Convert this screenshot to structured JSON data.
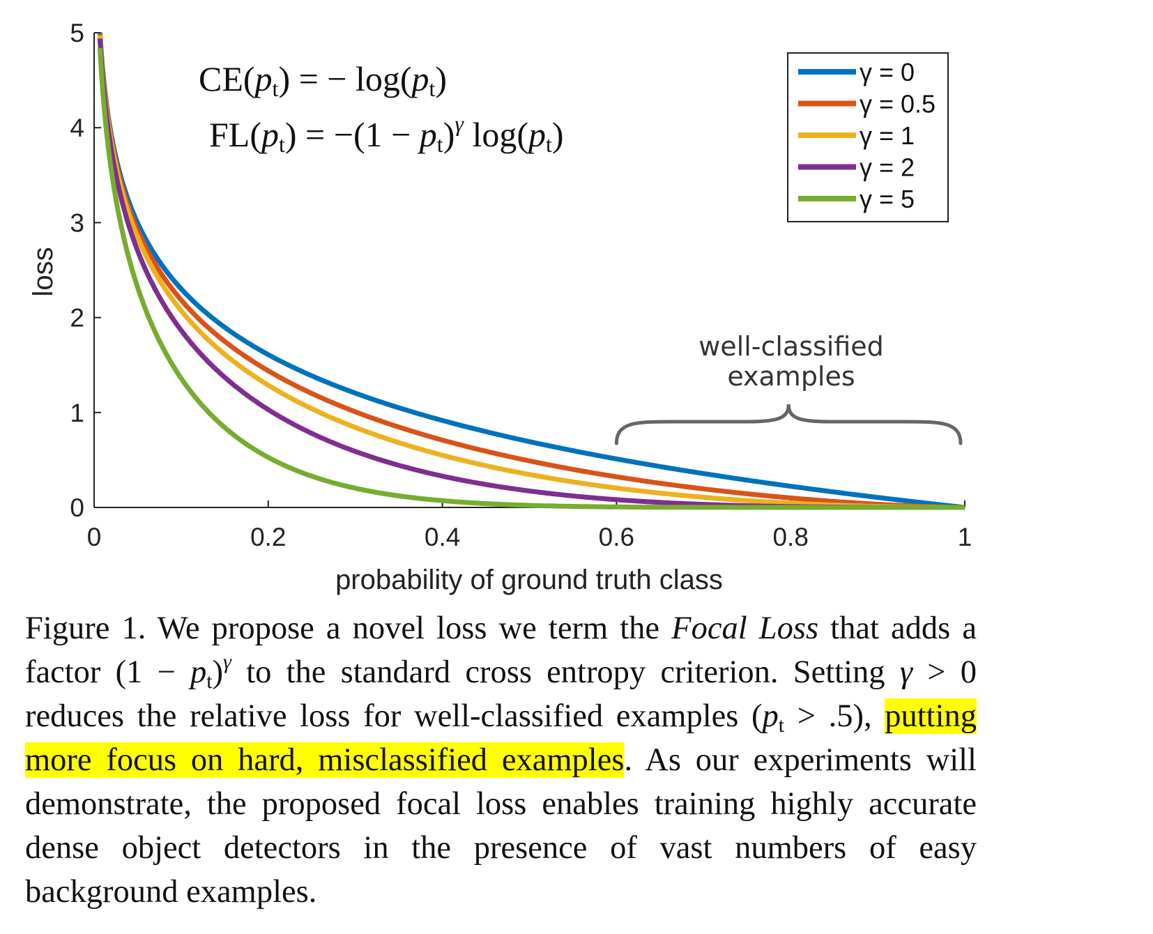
{
  "chart_data": {
    "type": "line",
    "xlabel": "probability of ground truth class",
    "ylabel": "loss",
    "xlim": [
      0,
      1
    ],
    "ylim": [
      0,
      5
    ],
    "xticks": [
      "0",
      "0.2",
      "0.4",
      "0.6",
      "0.8",
      "1"
    ],
    "yticks": [
      "0",
      "1",
      "2",
      "3",
      "4",
      "5"
    ],
    "grid": false,
    "legend_position": "top-right",
    "x": [
      0.0067,
      0.01,
      0.02,
      0.05,
      0.1,
      0.15,
      0.2,
      0.3,
      0.4,
      0.5,
      0.6,
      0.7,
      0.8,
      0.9,
      1.0
    ],
    "series": [
      {
        "name": "γ = 0",
        "color": "#0072bd",
        "values": [
          5.0,
          4.61,
          3.91,
          3.0,
          2.3,
          1.9,
          1.61,
          1.2,
          0.92,
          0.69,
          0.51,
          0.36,
          0.22,
          0.11,
          0.0
        ]
      },
      {
        "name": "γ = 0.5",
        "color": "#d95319",
        "values": [
          4.98,
          4.58,
          3.87,
          2.92,
          2.18,
          1.75,
          1.44,
          1.01,
          0.71,
          0.49,
          0.32,
          0.2,
          0.1,
          0.03,
          0.0
        ]
      },
      {
        "name": "γ = 1",
        "color": "#edb120",
        "values": [
          4.97,
          4.56,
          3.83,
          2.85,
          2.07,
          1.61,
          1.29,
          0.84,
          0.55,
          0.35,
          0.2,
          0.11,
          0.04,
          0.01,
          0.0
        ]
      },
      {
        "name": "γ = 2",
        "color": "#7e2f8e",
        "values": [
          4.93,
          4.51,
          3.76,
          2.71,
          1.87,
          1.37,
          1.03,
          0.59,
          0.33,
          0.17,
          0.08,
          0.03,
          0.01,
          0.0,
          0.0
        ]
      },
      {
        "name": "γ = 5",
        "color": "#77ac30",
        "values": [
          4.83,
          4.38,
          3.54,
          2.32,
          1.36,
          0.84,
          0.53,
          0.2,
          0.07,
          0.02,
          0.01,
          0.0,
          0.0,
          0.0,
          0.0
        ]
      }
    ],
    "annotations": {
      "ce_equation": {
        "lhs": "CE(",
        "var": "p",
        "sub": "t",
        "mid": ") = − log(",
        "end": ")"
      },
      "fl_equation": {
        "lhs": "FL(",
        "var": "p",
        "sub": "t",
        "mid1": ") = −(1 − ",
        "mid2": ")",
        "sup": "γ",
        "mid3": " log(",
        "end": ")"
      },
      "bracket_label_line1": "well-classified",
      "bracket_label_line2": "examples",
      "bracket_range": [
        0.6,
        1.0
      ]
    }
  },
  "caption": {
    "part1": "Figure 1. We propose a novel loss we term the ",
    "focal_loss": "Focal Loss",
    "part2": " that adds a factor (1 − ",
    "p": "p",
    "sub_t": "t",
    "part3": ")",
    "gamma": "γ",
    "part4": " to the standard cross entropy criterion. Setting ",
    "gamma2": "γ",
    "part5": " > 0 reduces the relative loss for well-classified examples (",
    "p2": "p",
    "sub_t2": "t",
    "part6": " > .5), ",
    "highlight": "putting more focus on hard, misclassified examples",
    "part7": ". As our experiments will demonstrate, the proposed focal loss enables training highly accurate dense object detectors in the presence of vast numbers of easy background examples."
  }
}
